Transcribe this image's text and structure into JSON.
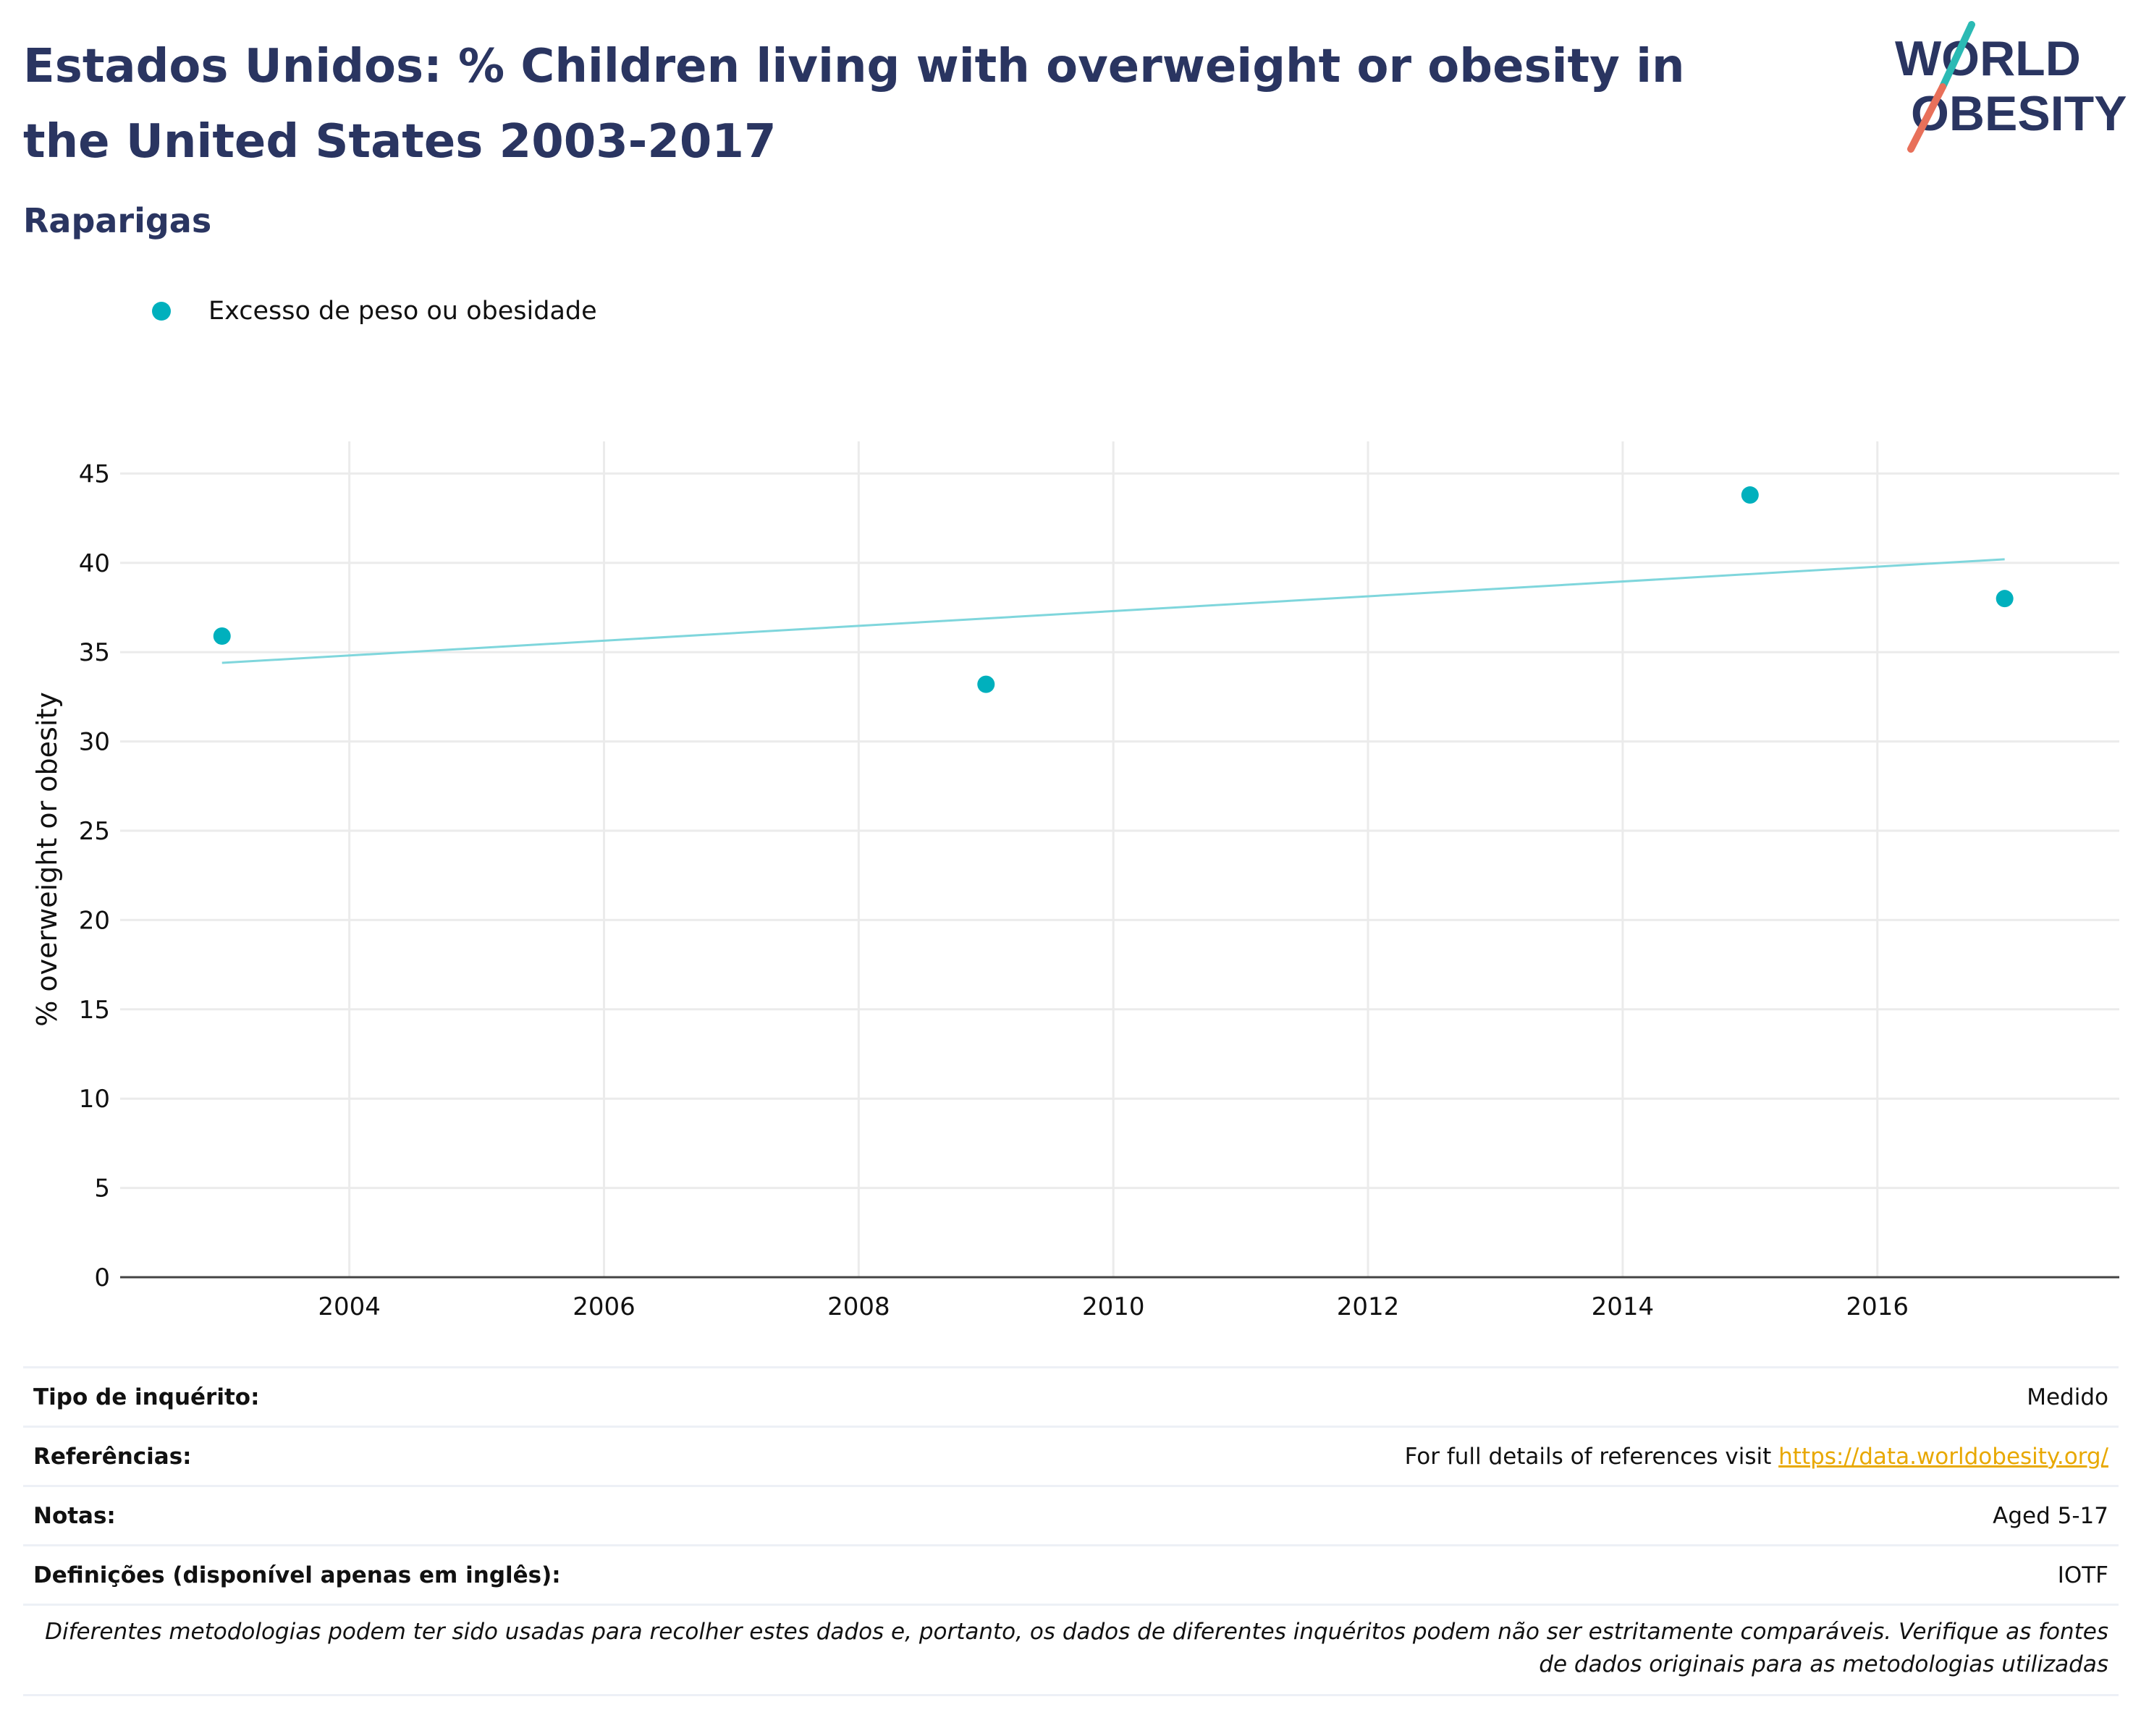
{
  "header": {
    "title": "Estados Unidos: % Children living with overweight or obesity in the United States 2003-2017",
    "subtitle": "Raparigas"
  },
  "logo": {
    "line1": "WORLD",
    "line2": "OBESITY",
    "text_color": "#2a3561",
    "accent_teal": "#2bbab4",
    "accent_red": "#e8705a"
  },
  "colors": {
    "series": "#00b0bd",
    "trend": "#7fd6dc",
    "link": "#e8a800"
  },
  "chart_data": {
    "type": "scatter",
    "title": "Estados Unidos: % Children living with overweight or obesity in the United States 2003-2017",
    "subtitle": "Raparigas",
    "xlabel": "",
    "ylabel": "% overweight or obesity",
    "xlim": [
      2002.2,
      2017.9
    ],
    "ylim": [
      0,
      46.8
    ],
    "xticks": [
      2004,
      2006,
      2008,
      2010,
      2012,
      2014,
      2016
    ],
    "yticks": [
      0,
      5,
      10,
      15,
      20,
      25,
      30,
      35,
      40,
      45
    ],
    "grid": true,
    "legend_position": "top-left",
    "series": [
      {
        "name": "Excesso de peso ou obesidade",
        "points": [
          {
            "x": 2003,
            "y": 35.9
          },
          {
            "x": 2009,
            "y": 33.2
          },
          {
            "x": 2015,
            "y": 43.8
          },
          {
            "x": 2017,
            "y": 38.0
          }
        ]
      }
    ],
    "trendline": {
      "x": [
        2003,
        2017
      ],
      "y": [
        34.4,
        40.2
      ]
    }
  },
  "info": {
    "rows": [
      {
        "label": "Tipo de inquérito:",
        "value": "Medido"
      },
      {
        "label": "Referências:",
        "value": "For full details of references visit ",
        "link": "https://data.worldobesity.org/"
      },
      {
        "label": "Notas:",
        "value": "Aged 5-17"
      },
      {
        "label": "Definições (disponível apenas em inglês):",
        "value": "IOTF"
      }
    ],
    "disclaimer_line1": "Diferentes metodologias podem ter sido usadas para recolher estes dados e, portanto, os dados de diferentes inquéritos podem não ser estritamente comparáveis. Verifique as fontes",
    "disclaimer_line2": "de dados originais para as metodologias utilizadas"
  }
}
